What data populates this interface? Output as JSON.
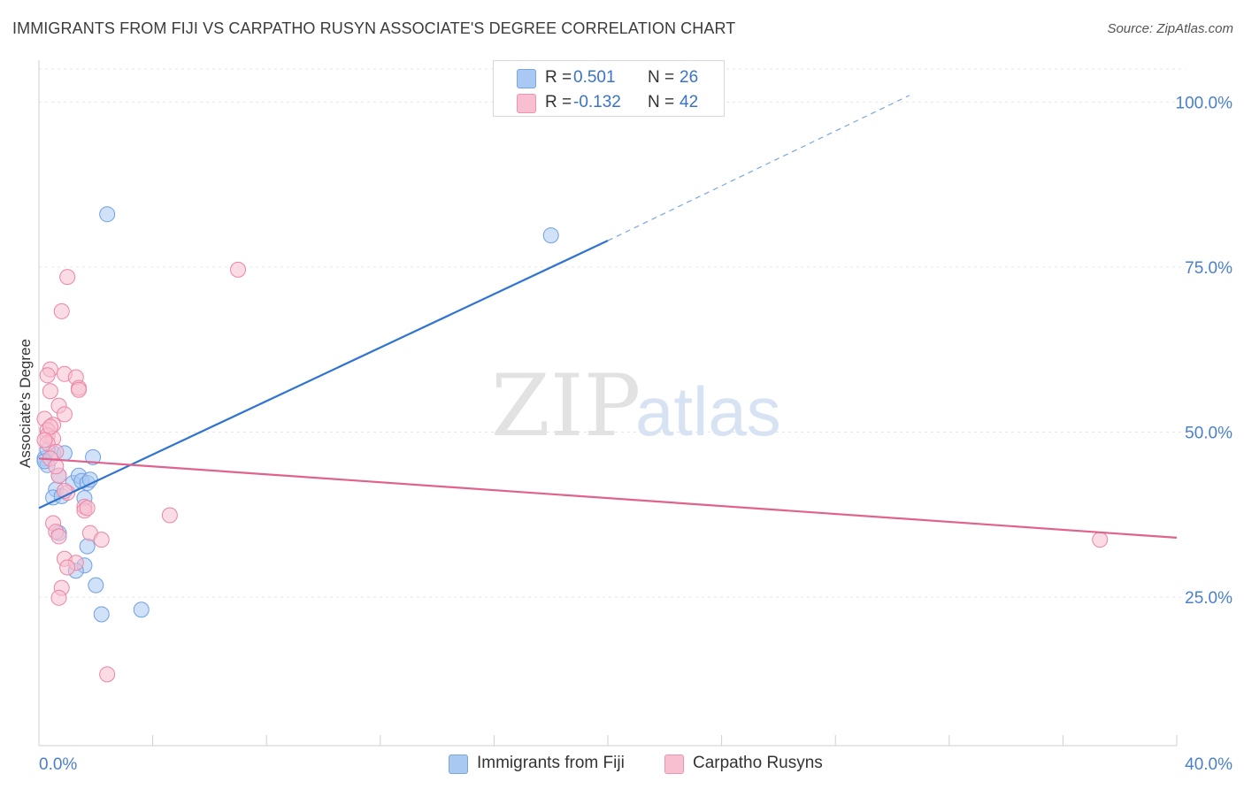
{
  "title": "IMMIGRANTS FROM FIJI VS CARPATHO RUSYN ASSOCIATE'S DEGREE CORRELATION CHART",
  "source": "Source: ZipAtlas.com",
  "watermark": {
    "zip": "ZIP",
    "atlas": "atlas"
  },
  "legend": {
    "rows": [
      {
        "r_label": "R =",
        "r_value": "0.501",
        "n_label": "N =",
        "n_value": "26",
        "color": "#a9c8f2",
        "border": "#7aa6e0"
      },
      {
        "r_label": "R =",
        "r_value": "-0.132",
        "n_label": "N =",
        "n_value": "42",
        "color": "#f8bfd0",
        "border": "#ee93b0"
      }
    ]
  },
  "bottom_legend": [
    {
      "label": "Immigrants from Fiji",
      "color": "#a9c8f2",
      "border": "#7aa6e0"
    },
    {
      "label": "Carpatho Rusyns",
      "color": "#f8bfd0",
      "border": "#ee93b0"
    }
  ],
  "chart_data": {
    "type": "scatter",
    "title": "IMMIGRANTS FROM FIJI VS CARPATHO RUSYN ASSOCIATE'S DEGREE CORRELATION CHART",
    "xlabel": "",
    "ylabel": "Associate's Degree",
    "xlim": [
      0,
      40
    ],
    "ylim": [
      2.5,
      105
    ],
    "x_tick_labels": [
      "0.0%",
      "40.0%"
    ],
    "y_ticks": [
      25,
      50,
      75,
      100
    ],
    "y_tick_labels": [
      "25.0%",
      "50.0%",
      "75.0%",
      "100.0%"
    ],
    "grid": true,
    "series": [
      {
        "name": "Immigrants from Fiji",
        "color": "#6fa0e3",
        "fill": "#a9c8f2",
        "points": [
          {
            "x": 2.4,
            "y": 83.0
          },
          {
            "x": 18.0,
            "y": 79.8
          },
          {
            "x": 0.2,
            "y": 46.0
          },
          {
            "x": 0.3,
            "y": 45.0
          },
          {
            "x": 0.5,
            "y": 46.8
          },
          {
            "x": 0.9,
            "y": 46.8
          },
          {
            "x": 1.9,
            "y": 46.2
          },
          {
            "x": 0.3,
            "y": 47.3
          },
          {
            "x": 0.6,
            "y": 41.3
          },
          {
            "x": 0.7,
            "y": 43.4
          },
          {
            "x": 1.2,
            "y": 42.3
          },
          {
            "x": 1.4,
            "y": 43.4
          },
          {
            "x": 1.5,
            "y": 42.6
          },
          {
            "x": 1.7,
            "y": 42.3
          },
          {
            "x": 1.8,
            "y": 42.8
          },
          {
            "x": 0.5,
            "y": 40.1
          },
          {
            "x": 0.8,
            "y": 40.3
          },
          {
            "x": 1.6,
            "y": 40.0
          },
          {
            "x": 0.7,
            "y": 34.7
          },
          {
            "x": 1.7,
            "y": 32.7
          },
          {
            "x": 1.6,
            "y": 29.8
          },
          {
            "x": 1.3,
            "y": 29.0
          },
          {
            "x": 2.0,
            "y": 26.8
          },
          {
            "x": 2.2,
            "y": 22.4
          },
          {
            "x": 3.6,
            "y": 23.1
          },
          {
            "x": 0.2,
            "y": 45.6
          }
        ],
        "trend": {
          "x0": 0,
          "y0": 38.5,
          "x1": 20.0,
          "y1": 79.0,
          "dash_to_x": 30.6,
          "dash_to_y": 101.0
        }
      },
      {
        "name": "Carpatho Rusyns",
        "color": "#ea85a6",
        "fill": "#f8bfd0",
        "points": [
          {
            "x": 7.0,
            "y": 74.6
          },
          {
            "x": 1.0,
            "y": 73.5
          },
          {
            "x": 0.8,
            "y": 68.3
          },
          {
            "x": 0.4,
            "y": 59.5
          },
          {
            "x": 0.3,
            "y": 58.6
          },
          {
            "x": 0.9,
            "y": 58.8
          },
          {
            "x": 1.3,
            "y": 58.3
          },
          {
            "x": 1.4,
            "y": 56.7
          },
          {
            "x": 0.4,
            "y": 56.2
          },
          {
            "x": 0.7,
            "y": 54.0
          },
          {
            "x": 0.9,
            "y": 52.7
          },
          {
            "x": 0.2,
            "y": 52.0
          },
          {
            "x": 0.5,
            "y": 51.1
          },
          {
            "x": 0.3,
            "y": 50.3
          },
          {
            "x": 0.3,
            "y": 49.5
          },
          {
            "x": 0.5,
            "y": 49.0
          },
          {
            "x": 0.3,
            "y": 48.3
          },
          {
            "x": 0.6,
            "y": 47.0
          },
          {
            "x": 0.4,
            "y": 46.0
          },
          {
            "x": 0.7,
            "y": 43.4
          },
          {
            "x": 1.0,
            "y": 40.8
          },
          {
            "x": 1.6,
            "y": 38.7
          },
          {
            "x": 1.6,
            "y": 38.1
          },
          {
            "x": 4.6,
            "y": 37.4
          },
          {
            "x": 0.5,
            "y": 36.2
          },
          {
            "x": 0.6,
            "y": 34.9
          },
          {
            "x": 0.7,
            "y": 34.2
          },
          {
            "x": 1.8,
            "y": 34.7
          },
          {
            "x": 2.2,
            "y": 33.7
          },
          {
            "x": 0.9,
            "y": 30.8
          },
          {
            "x": 1.3,
            "y": 30.2
          },
          {
            "x": 1.0,
            "y": 29.5
          },
          {
            "x": 0.8,
            "y": 26.4
          },
          {
            "x": 0.7,
            "y": 24.9
          },
          {
            "x": 2.4,
            "y": 13.3
          },
          {
            "x": 37.3,
            "y": 33.7
          },
          {
            "x": 1.7,
            "y": 38.5
          },
          {
            "x": 0.4,
            "y": 50.8
          },
          {
            "x": 1.4,
            "y": 56.4
          },
          {
            "x": 0.2,
            "y": 48.8
          },
          {
            "x": 0.9,
            "y": 41.1
          },
          {
            "x": 0.6,
            "y": 44.8
          }
        ],
        "trend": {
          "x0": 0,
          "y0": 46.0,
          "x1": 40,
          "y1": 34.0
        }
      }
    ]
  }
}
